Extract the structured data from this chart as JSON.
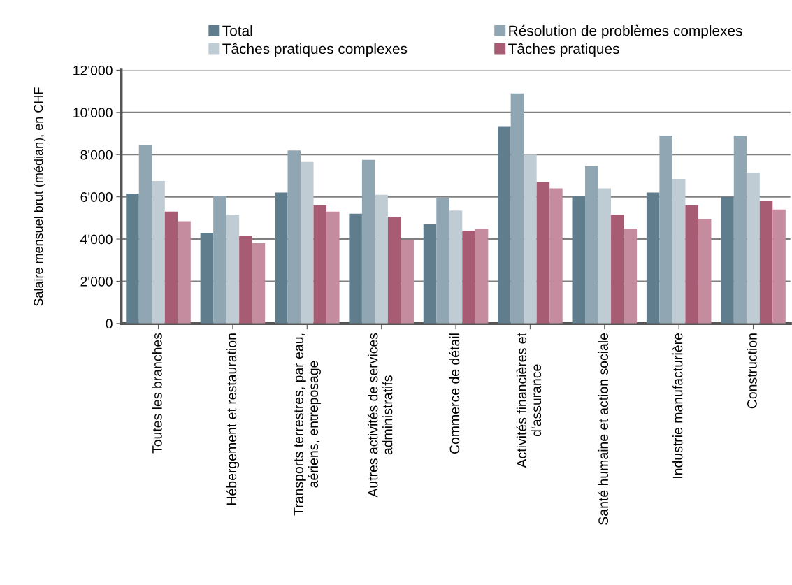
{
  "chart_data": {
    "type": "bar",
    "ylabel": "Salaire mensuel brut (médian), en CHF",
    "categories": [
      "Toutes les branches",
      "Hébergement et restauration",
      "Transports terrestres, par eau, aériens, entreposage",
      "Autres activités de services administratifs",
      "Commerce de détail",
      "Activités financières et d'assurance",
      "Santé humaine et action sociale",
      "Industrie manufacturière",
      "Construction"
    ],
    "series": [
      {
        "name": "Total",
        "color": "#607d8e",
        "values": [
          6150,
          4300,
          6200,
          5200,
          4700,
          9350,
          6050,
          6200,
          6000
        ]
      },
      {
        "name": "Résolution de problèmes complexes",
        "color": "#91a6b3",
        "values": [
          8450,
          6050,
          8200,
          7750,
          5950,
          10900,
          7450,
          8900,
          8900
        ]
      },
      {
        "name": "Tâches pratiques complexes",
        "color": "#c0ccd4",
        "values": [
          6750,
          5150,
          7650,
          6100,
          5350,
          8000,
          6400,
          6850,
          7150
        ]
      },
      {
        "name": "Tâches pratiques",
        "color": "#a85c73",
        "values": [
          5300,
          4150,
          5600,
          5050,
          4400,
          6700,
          5150,
          5600,
          5800
        ]
      },
      {
        "color": "#c48c9e",
        "values": [
          4850,
          3800,
          5300,
          3950,
          4500,
          6400,
          4500,
          4950,
          5400
        ]
      }
    ],
    "ylim": [
      0,
      12000
    ],
    "yticks": [
      0,
      {
        "value": 2000,
        "label": "2'000"
      },
      {
        "value": 4000,
        "label": "4'000"
      },
      {
        "value": 6000,
        "label": "6'000"
      },
      {
        "value": 8000,
        "label": "8'000"
      },
      {
        "value": 10000,
        "label": "10'000"
      },
      {
        "value": 12000,
        "label": "12'000"
      }
    ],
    "grid": "y",
    "legend": "top"
  }
}
